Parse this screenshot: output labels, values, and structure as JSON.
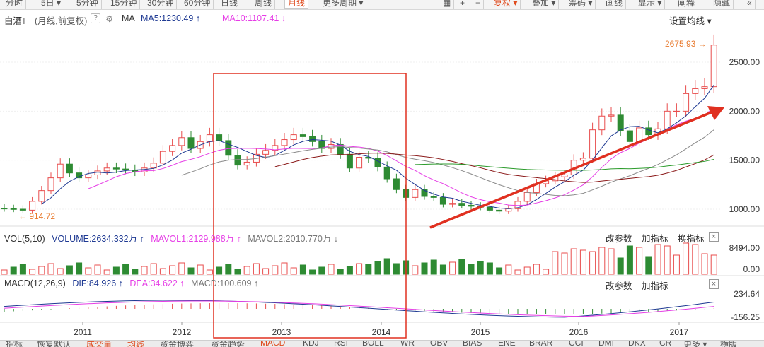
{
  "toolbar": {
    "items": [
      "分时",
      "5日 ▾",
      "5分钟",
      "15分钟",
      "30分钟",
      "60分钟",
      "日线",
      "周线",
      "月线",
      "更多周期 ▾"
    ],
    "active_index": 8,
    "right_items": [
      "复权 ▾",
      "叠加 ▾",
      "筹码 ▾",
      "画线",
      "显示 ▾",
      "阐释",
      "隐藏"
    ]
  },
  "header": {
    "stock_name": "白酒Ⅱ",
    "period_info": "(月线,前复权)",
    "help": "?",
    "ma_label": "MA",
    "ma5": "MA5:1230.49",
    "ma10": "MA10:1107.41",
    "settings": "设置均线 ▾"
  },
  "price_chart": {
    "y_ticks": [
      "2500.00",
      "2000.00",
      "1500.00",
      "1000.00"
    ],
    "high_label": "2675.93",
    "low_label": "914.72"
  },
  "volume_panel": {
    "title": "VOL(5,10)",
    "volume": "VOLUME:2634.332万",
    "mavol1": "MAVOL1:2129.988万",
    "mavol2": "MAVOL2:2010.770万",
    "y_top": "8494.00",
    "y_bottom": "0.00",
    "tools": [
      "改参数",
      "加指标",
      "换指标"
    ]
  },
  "macd_panel": {
    "title": "MACD(12,26,9)",
    "dif": "DIF:84.926",
    "dea": "DEA:34.622",
    "macd": "MACD:100.609",
    "y_top": "234.64",
    "y_bottom": "-156.25",
    "tools": [
      "改参数",
      "加指标"
    ]
  },
  "x_axis": {
    "labels": [
      "2011",
      "2012",
      "2013",
      "2014",
      "2015",
      "2016",
      "2017"
    ]
  },
  "bottom_tabs": [
    "指标",
    "恢复默认",
    "成交量",
    "均线",
    "资金博弈",
    "资金趋势",
    "MACD",
    "KDJ",
    "RSI",
    "BOLL",
    "WR",
    "OBV",
    "BIAS",
    "ENE",
    "BRAR",
    "CCI",
    "DMI",
    "DKX",
    "CR",
    "更多 ▾",
    "横版"
  ],
  "colors": {
    "up": "#e84d4d",
    "down": "#2e8b33",
    "ma5": "#1f3a93",
    "ma10": "#e63ee6",
    "ma20": "#8a8a8a",
    "ma60": "#8b1a1a",
    "ma120": "#2b9b2b",
    "annotation": "#e03020",
    "accent": "#e87a2e"
  }
}
